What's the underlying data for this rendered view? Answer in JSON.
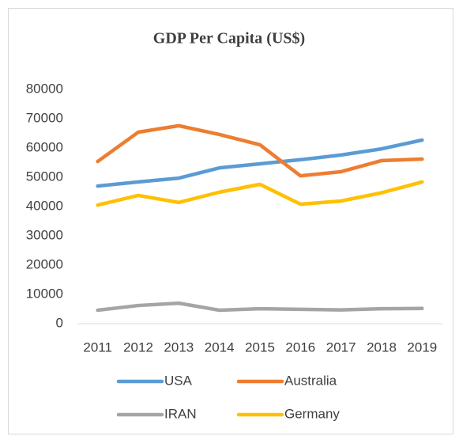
{
  "chart_data": {
    "type": "line",
    "title": "GDP Per Capita (US$)",
    "categories": [
      "2011",
      "2012",
      "2013",
      "2014",
      "2015",
      "2016",
      "2017",
      "2018",
      "2019"
    ],
    "series": [
      {
        "name": "USA",
        "color": "#5b9bd5",
        "values": [
          47000,
          48400,
          49700,
          53200,
          54600,
          56000,
          57600,
          59700,
          62700
        ]
      },
      {
        "name": "Australia",
        "color": "#ed7d31",
        "values": [
          55400,
          65400,
          67600,
          64600,
          61100,
          50500,
          51900,
          55700,
          56200
        ]
      },
      {
        "name": "IRAN",
        "color": "#a5a5a5",
        "values": [
          4600,
          6200,
          7000,
          4600,
          5100,
          4900,
          4700,
          5100,
          5200
        ]
      },
      {
        "name": "Germany",
        "color": "#ffc000",
        "values": [
          40500,
          43800,
          41400,
          44900,
          47600,
          40800,
          41900,
          44700,
          48400
        ]
      }
    ],
    "ylim": [
      0,
      80000
    ],
    "yticks": [
      0,
      10000,
      20000,
      30000,
      40000,
      50000,
      60000,
      70000,
      80000
    ],
    "grid": false,
    "legend": "bottom"
  }
}
